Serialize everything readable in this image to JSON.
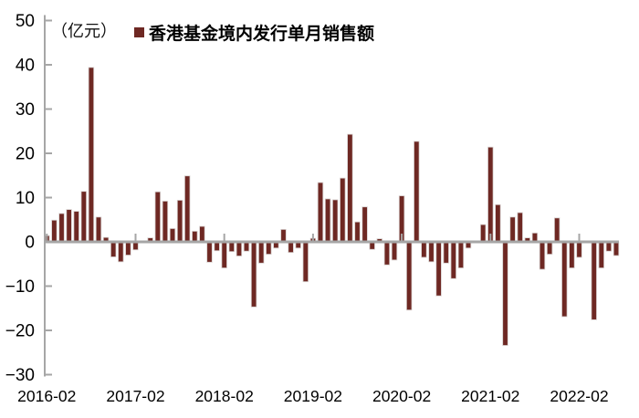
{
  "chart_data": {
    "type": "bar",
    "legend_label": "香港基金境内发行单月销售额",
    "unit_label": "（亿元）",
    "series": [
      {
        "name": "香港基金境内发行单月销售额",
        "values": [
          1.4,
          4.9,
          6.4,
          7.3,
          6.9,
          11.4,
          39.4,
          5.6,
          1.0,
          -3.4,
          -4.5,
          -3.0,
          -1.8,
          0.0,
          0.9,
          11.3,
          9.2,
          3.0,
          9.4,
          14.9,
          2.4,
          3.5,
          -4.6,
          -2.0,
          -5.9,
          -2.2,
          -3.2,
          -2.1,
          -14.7,
          -4.8,
          -2.8,
          -1.4,
          2.8,
          -2.4,
          -1.4,
          -9.0,
          0.8,
          13.4,
          9.7,
          9.5,
          14.4,
          24.3,
          4.5,
          7.9,
          -1.7,
          0.7,
          -5.2,
          -4.1,
          10.4,
          -15.4,
          22.7,
          -3.5,
          -4.5,
          -12.2,
          -4.8,
          -8.3,
          -5.9,
          -1.4,
          0.0,
          3.9,
          21.4,
          8.4,
          -23.4,
          5.6,
          6.6,
          0.9,
          2.0,
          -6.2,
          -2.8,
          5.4,
          -16.9,
          -5.9,
          -3.5,
          0.0,
          -17.6,
          -5.9,
          -2.1,
          -3.1
        ]
      }
    ],
    "x": [
      "2016-02",
      "2016-03",
      "2016-04",
      "2016-05",
      "2016-06",
      "2016-07",
      "2016-08",
      "2016-09",
      "2016-10",
      "2016-11",
      "2016-12",
      "2017-01",
      "2017-02",
      "2017-03",
      "2017-04",
      "2017-05",
      "2017-06",
      "2017-07",
      "2017-08",
      "2017-09",
      "2017-10",
      "2017-11",
      "2017-12",
      "2018-01",
      "2018-02",
      "2018-03",
      "2018-04",
      "2018-05",
      "2018-06",
      "2018-07",
      "2018-08",
      "2018-09",
      "2018-10",
      "2018-11",
      "2018-12",
      "2019-01",
      "2019-02",
      "2019-03",
      "2019-04",
      "2019-05",
      "2019-06",
      "2019-07",
      "2019-08",
      "2019-09",
      "2019-10",
      "2019-11",
      "2019-12",
      "2020-01",
      "2020-02",
      "2020-03",
      "2020-04",
      "2020-05",
      "2020-06",
      "2020-07",
      "2020-08",
      "2020-09",
      "2020-10",
      "2020-11",
      "2020-12",
      "2021-01",
      "2021-02",
      "2021-03",
      "2021-04",
      "2021-05",
      "2021-06",
      "2021-07",
      "2021-08",
      "2021-09",
      "2021-10",
      "2021-11",
      "2021-12",
      "2022-01",
      "2022-02",
      "2022-03",
      "2022-04",
      "2022-05",
      "2022-06",
      "2022-07"
    ],
    "ylim": [
      -30,
      50
    ],
    "yticks": [
      50,
      40,
      30,
      20,
      10,
      0,
      -10,
      -20,
      -30
    ],
    "xtick_labels": [
      "2016-02",
      "2017-02",
      "2018-02",
      "2019-02",
      "2020-02",
      "2021-02",
      "2022-02"
    ],
    "xtick_every_n_months": 12,
    "grid": false,
    "legend_position": "top-center",
    "bar_color": "#6E2823",
    "bar_edge_color": "#D6CFCE",
    "axis_color": "#A6A6A6",
    "text_color": "#000000"
  }
}
